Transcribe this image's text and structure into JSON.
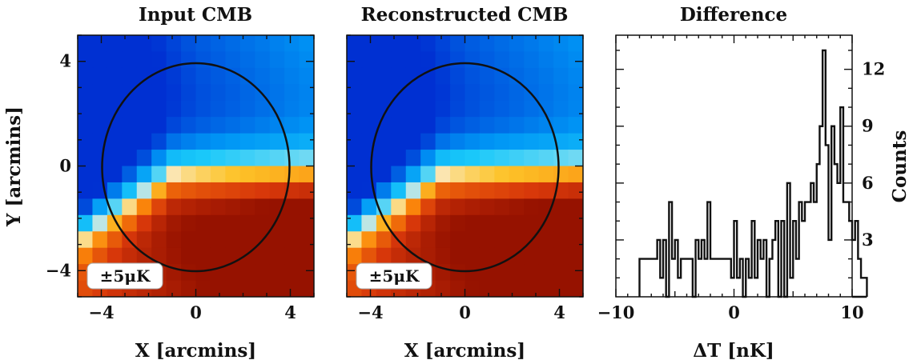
{
  "colors": {
    "frame": "#111111",
    "circle": "#111111",
    "hist": "#111111",
    "badge_bg": "#ffffff"
  },
  "chart_data": [
    {
      "type": "heatmap",
      "title": "Input CMB",
      "xlabel": "X [arcmins]",
      "ylabel": "Y [arcmins]",
      "xlim": [
        -5,
        5
      ],
      "ylim": [
        -5,
        5
      ],
      "xticks": [
        -4,
        0,
        4
      ],
      "yticks": [
        4,
        0,
        -4
      ],
      "xtick_labels": [
        "−4",
        "0",
        "4"
      ],
      "ytick_labels": [
        "4",
        "0",
        "−4"
      ],
      "grid_size": 16,
      "colormap": "red-orange-white-cyan-blue (diverging)",
      "aperture_circle": {
        "center": [
          0,
          0
        ],
        "radius_arcmin": 4
      },
      "scale_badge": "±5μK"
    },
    {
      "type": "heatmap",
      "title": "Reconstructed CMB",
      "xlabel": "X [arcmins]",
      "xlim": [
        -5,
        5
      ],
      "ylim": [
        -5,
        5
      ],
      "xticks": [
        -4,
        0,
        4
      ],
      "xtick_labels": [
        "−4",
        "0",
        "4"
      ],
      "grid_size": 16,
      "colormap": "red-orange-white-cyan-blue (diverging)",
      "aperture_circle": {
        "center": [
          0,
          0
        ],
        "radius_arcmin": 4
      },
      "scale_badge": "±5μK"
    },
    {
      "type": "histogram",
      "title": "Difference",
      "xlabel": "ΔT [nK]",
      "ylabel": "Counts",
      "xlim": [
        -10,
        10
      ],
      "ylim": [
        0,
        13.8
      ],
      "xticks": [
        -10,
        0,
        10
      ],
      "xtick_labels": [
        "−10",
        "0",
        "10"
      ],
      "yticks": [
        3,
        6,
        9,
        12
      ],
      "ytick_labels": [
        "3",
        "6",
        "9",
        "12"
      ],
      "bin_edges_start": -8.0,
      "bin_width": 0.25,
      "counts": [
        2,
        2,
        2,
        2,
        2,
        2,
        3,
        1,
        3,
        0,
        5,
        2,
        3,
        1,
        2,
        2,
        2,
        2,
        0,
        3,
        2,
        3,
        2,
        5,
        2,
        2,
        2,
        2,
        2,
        2,
        2,
        1,
        4,
        1,
        2,
        0,
        2,
        1,
        4,
        1,
        3,
        2,
        3,
        0,
        2,
        3,
        4,
        0,
        4,
        0,
        6,
        1,
        4,
        2,
        5,
        4,
        5,
        5,
        6,
        5,
        7,
        9,
        13,
        8,
        3,
        9,
        7,
        6,
        10,
        5,
        5,
        4,
        3,
        4,
        2,
        1,
        1
      ]
    }
  ]
}
